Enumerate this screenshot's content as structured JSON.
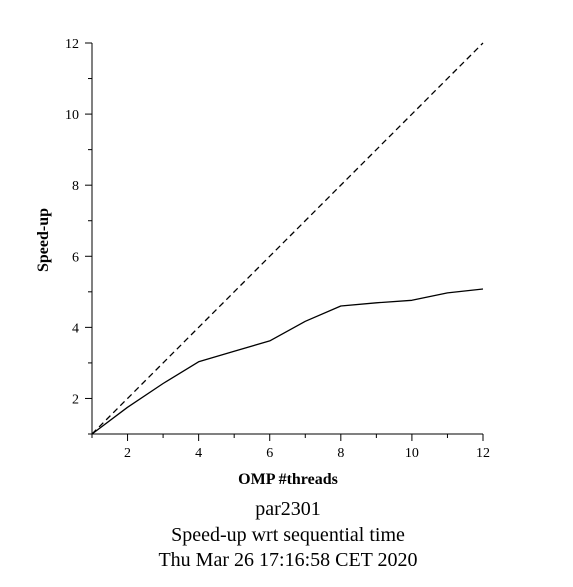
{
  "chart_data": {
    "type": "line",
    "title": "",
    "xlabel": "OMP #threads",
    "ylabel": "Speed-up",
    "xlim": [
      1,
      12
    ],
    "ylim": [
      1,
      12
    ],
    "x_ticks": [
      2,
      4,
      6,
      8,
      10,
      12
    ],
    "y_ticks": [
      2,
      4,
      6,
      8,
      10,
      12
    ],
    "grid": false,
    "legend": "none",
    "series": [
      {
        "style": "solid",
        "color": "#000000",
        "x": [
          1,
          2,
          3,
          4,
          5,
          6,
          7,
          8,
          9,
          10,
          11,
          12
        ],
        "values": [
          1.0,
          1.75,
          2.42,
          3.03,
          3.33,
          3.62,
          4.17,
          4.6,
          4.69,
          4.76,
          4.97,
          5.08
        ]
      },
      {
        "style": "dashed",
        "color": "#000000",
        "x": [
          1,
          12
        ],
        "values": [
          1,
          12
        ]
      }
    ]
  },
  "captions": {
    "line1": "par2301",
    "line2": "Speed-up wrt sequential time",
    "line3": "Thu Mar 26 17:16:58 CET 2020"
  }
}
